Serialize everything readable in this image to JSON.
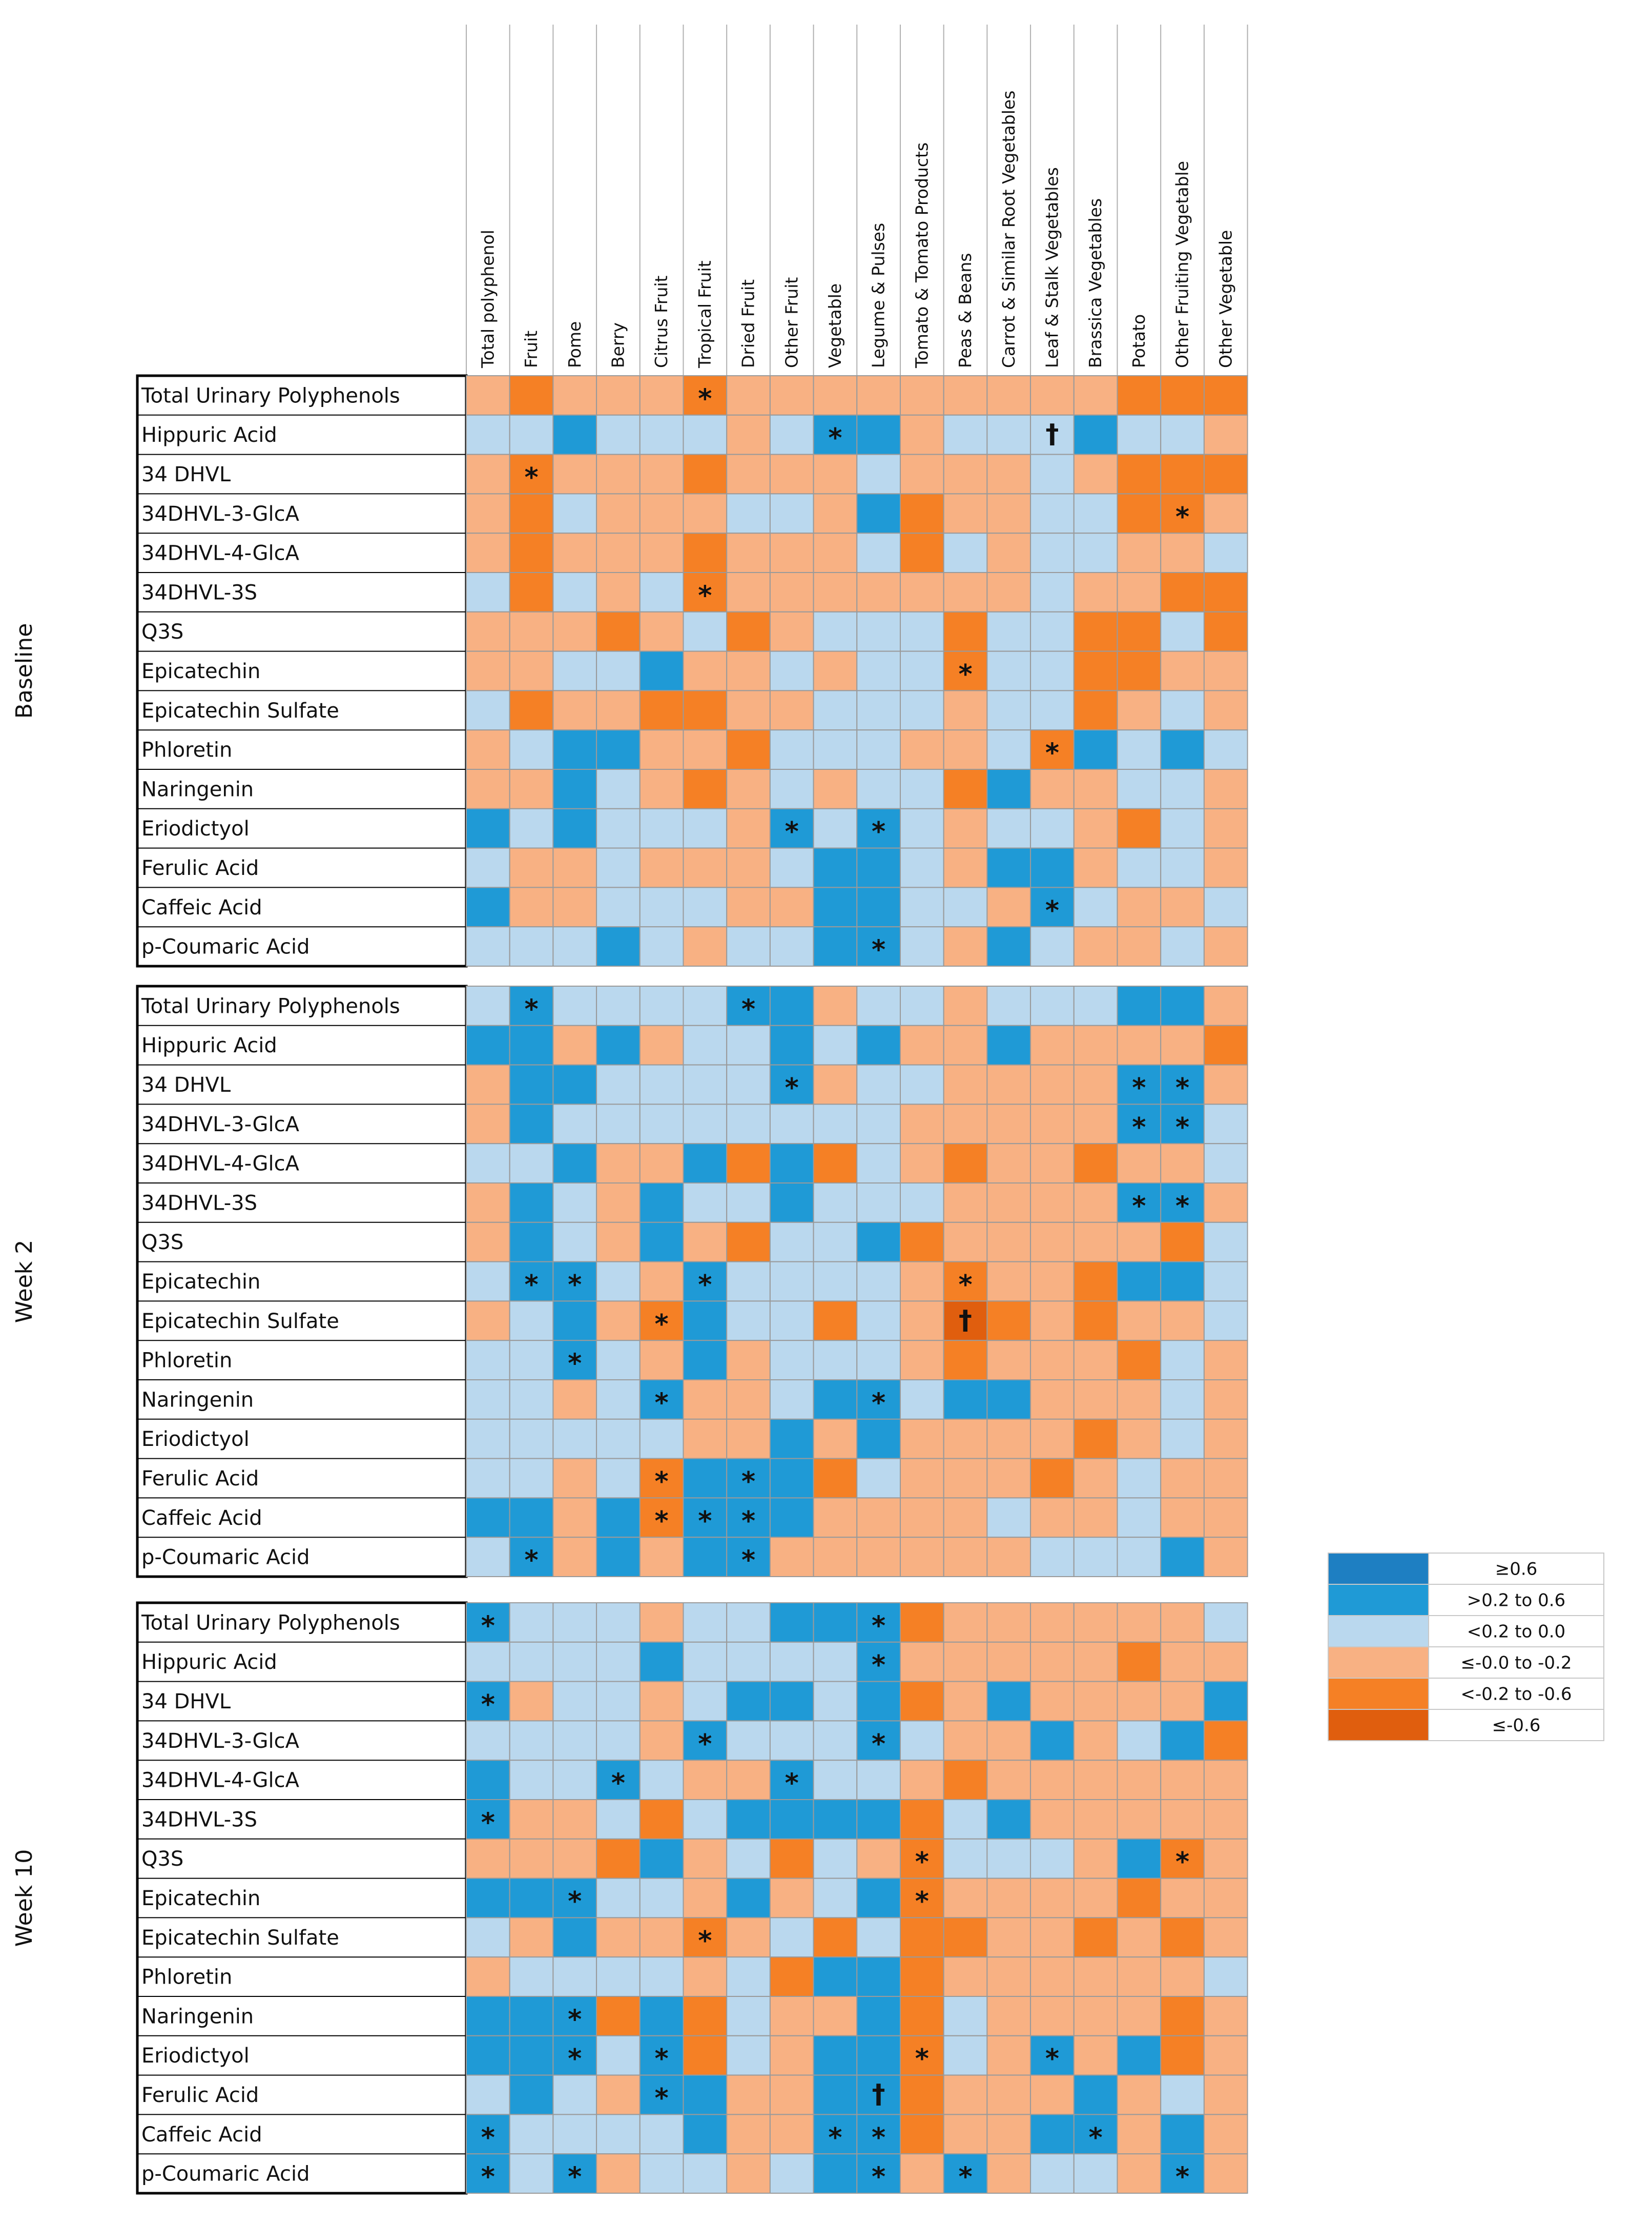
{
  "colors": {
    "strong_pos": "#1e7fc2",
    "pos": "#1f9ad6",
    "weak_pos": "#bad8ee",
    "weak_neg": "#f8b183",
    "neg": "#f58025",
    "strong_neg": "#e05e0e",
    "grid": "#9a9a9a",
    "border": "#000000"
  },
  "chart_data": {
    "type": "heatmap",
    "title": "",
    "columns": [
      "Total polyphenol",
      "Fruit",
      "Pome",
      "Berry",
      "Citrus Fruit",
      "Tropical Fruit",
      "Dried Fruit",
      "Other Fruit",
      "Vegetable",
      "Legume & Pulses",
      "Tomato & Tomato Products",
      "Peas & Beans",
      "Carrot & Similar Root Vegetables",
      "Leaf & Stalk Vegetables",
      "Brassica Vegetables",
      "Potato",
      "Other Fruiting Vegetable",
      "Other Vegetable"
    ],
    "rows": [
      "Total Urinary Polyphenols",
      "Hippuric Acid",
      "34 DHVL",
      "34DHVL-3-GlcA",
      "34DHVL-4-GlcA",
      "34DHVL-3S",
      "Q3S",
      "Epicatechin",
      "Epicatechin Sulfate",
      "Phloretin",
      "Naringenin",
      "Eriodictyol",
      "Ferulic Acid",
      "Caffeic Acid",
      "p-Coumaric Acid"
    ],
    "category_scale": [
      {
        "code": 5,
        "label": "≥0.6"
      },
      {
        "code": 4,
        "label": ">0.2 to 0.6"
      },
      {
        "code": 3,
        "label": "<0.2 to 0.0"
      },
      {
        "code": 2,
        "label": "≤-0.0 to -0.2"
      },
      {
        "code": 1,
        "label": "<-0.2 to -0.6"
      },
      {
        "code": 0,
        "label": "≤-0.6"
      }
    ],
    "significance_marks": {
      "*": "significant",
      "†": "highly significant"
    },
    "panels": [
      {
        "name": "Baseline",
        "values": [
          [
            2,
            1,
            2,
            2,
            2,
            1,
            2,
            2,
            2,
            2,
            2,
            2,
            2,
            2,
            2,
            1,
            1,
            1
          ],
          [
            3,
            3,
            4,
            3,
            3,
            3,
            2,
            3,
            4,
            4,
            2,
            3,
            3,
            3,
            4,
            3,
            3,
            2
          ],
          [
            2,
            1,
            2,
            2,
            2,
            1,
            2,
            2,
            2,
            3,
            2,
            2,
            2,
            3,
            2,
            1,
            1,
            1
          ],
          [
            2,
            1,
            3,
            2,
            2,
            2,
            3,
            3,
            2,
            4,
            1,
            2,
            2,
            3,
            3,
            1,
            1,
            2
          ],
          [
            2,
            1,
            2,
            2,
            2,
            1,
            2,
            2,
            2,
            3,
            1,
            3,
            2,
            3,
            3,
            2,
            2,
            3
          ],
          [
            3,
            1,
            3,
            2,
            3,
            1,
            2,
            2,
            2,
            2,
            2,
            2,
            2,
            3,
            2,
            2,
            1,
            1
          ],
          [
            2,
            2,
            2,
            1,
            2,
            3,
            1,
            2,
            3,
            3,
            3,
            1,
            3,
            3,
            1,
            1,
            3,
            1
          ],
          [
            2,
            2,
            3,
            3,
            4,
            2,
            2,
            3,
            2,
            3,
            3,
            1,
            3,
            3,
            1,
            1,
            2,
            2
          ],
          [
            3,
            1,
            2,
            2,
            1,
            1,
            2,
            2,
            3,
            3,
            3,
            2,
            3,
            3,
            1,
            2,
            3,
            2
          ],
          [
            2,
            3,
            4,
            4,
            2,
            2,
            1,
            3,
            3,
            3,
            2,
            2,
            3,
            1,
            4,
            3,
            4,
            3
          ],
          [
            2,
            2,
            4,
            3,
            2,
            1,
            2,
            3,
            2,
            3,
            3,
            1,
            4,
            2,
            2,
            3,
            3,
            2
          ],
          [
            4,
            3,
            4,
            3,
            3,
            3,
            2,
            4,
            3,
            4,
            3,
            2,
            3,
            3,
            2,
            1,
            3,
            2
          ],
          [
            3,
            2,
            2,
            3,
            2,
            2,
            2,
            3,
            4,
            4,
            3,
            2,
            4,
            4,
            2,
            3,
            3,
            2
          ],
          [
            4,
            2,
            2,
            3,
            3,
            3,
            2,
            2,
            4,
            4,
            3,
            3,
            2,
            4,
            3,
            2,
            2,
            3
          ],
          [
            3,
            3,
            3,
            4,
            3,
            2,
            3,
            3,
            4,
            4,
            3,
            2,
            4,
            3,
            2,
            2,
            3,
            2
          ]
        ],
        "marks": [
          [
            0,
            5,
            "*"
          ],
          [
            1,
            8,
            "*"
          ],
          [
            1,
            13,
            "†"
          ],
          [
            2,
            1,
            "*"
          ],
          [
            3,
            16,
            "*"
          ],
          [
            5,
            5,
            "*"
          ],
          [
            7,
            11,
            "*"
          ],
          [
            9,
            13,
            "*"
          ],
          [
            11,
            7,
            "*"
          ],
          [
            11,
            9,
            "*"
          ],
          [
            13,
            13,
            "*"
          ],
          [
            14,
            9,
            "*"
          ]
        ]
      },
      {
        "name": "Week 2",
        "values": [
          [
            3,
            4,
            3,
            3,
            3,
            3,
            4,
            4,
            2,
            3,
            3,
            2,
            3,
            3,
            3,
            4,
            4,
            2
          ],
          [
            4,
            4,
            2,
            4,
            2,
            3,
            3,
            4,
            3,
            4,
            2,
            2,
            4,
            2,
            2,
            2,
            2,
            1
          ],
          [
            2,
            4,
            4,
            3,
            3,
            3,
            3,
            4,
            2,
            3,
            3,
            2,
            2,
            2,
            2,
            4,
            4,
            2
          ],
          [
            2,
            4,
            3,
            3,
            3,
            3,
            3,
            3,
            3,
            3,
            2,
            2,
            2,
            2,
            2,
            4,
            4,
            3
          ],
          [
            3,
            3,
            4,
            2,
            2,
            4,
            1,
            4,
            1,
            3,
            2,
            1,
            2,
            2,
            1,
            2,
            2,
            3
          ],
          [
            2,
            4,
            3,
            2,
            4,
            3,
            3,
            4,
            3,
            3,
            3,
            2,
            2,
            2,
            2,
            4,
            4,
            2
          ],
          [
            2,
            4,
            3,
            2,
            4,
            2,
            1,
            3,
            3,
            4,
            1,
            2,
            2,
            2,
            2,
            2,
            1,
            3
          ],
          [
            3,
            4,
            4,
            3,
            2,
            4,
            3,
            3,
            3,
            3,
            2,
            1,
            2,
            2,
            1,
            4,
            4,
            3
          ],
          [
            2,
            3,
            4,
            2,
            1,
            4,
            3,
            3,
            1,
            3,
            2,
            0,
            1,
            2,
            1,
            2,
            2,
            3
          ],
          [
            3,
            3,
            4,
            3,
            2,
            4,
            2,
            3,
            3,
            3,
            2,
            1,
            2,
            2,
            2,
            1,
            3,
            2
          ],
          [
            3,
            3,
            2,
            3,
            4,
            2,
            2,
            3,
            4,
            4,
            3,
            4,
            4,
            2,
            2,
            2,
            3,
            2
          ],
          [
            3,
            3,
            3,
            3,
            3,
            2,
            2,
            4,
            2,
            4,
            2,
            2,
            2,
            2,
            1,
            2,
            3,
            2
          ],
          [
            3,
            3,
            2,
            3,
            1,
            4,
            4,
            4,
            1,
            3,
            2,
            2,
            2,
            1,
            2,
            3,
            2,
            2
          ],
          [
            4,
            4,
            2,
            4,
            1,
            4,
            4,
            4,
            2,
            2,
            2,
            2,
            3,
            2,
            2,
            3,
            2,
            2
          ],
          [
            3,
            4,
            2,
            4,
            2,
            4,
            4,
            2,
            2,
            2,
            2,
            2,
            2,
            3,
            3,
            3,
            4,
            2
          ]
        ],
        "marks": [
          [
            0,
            1,
            "*"
          ],
          [
            0,
            6,
            "*"
          ],
          [
            2,
            7,
            "*"
          ],
          [
            2,
            15,
            "*"
          ],
          [
            2,
            16,
            "*"
          ],
          [
            3,
            15,
            "*"
          ],
          [
            3,
            16,
            "*"
          ],
          [
            5,
            15,
            "*"
          ],
          [
            5,
            16,
            "*"
          ],
          [
            7,
            1,
            "*"
          ],
          [
            7,
            2,
            "*"
          ],
          [
            7,
            5,
            "*"
          ],
          [
            7,
            11,
            "*"
          ],
          [
            8,
            4,
            "*"
          ],
          [
            8,
            11,
            "†"
          ],
          [
            9,
            2,
            "*"
          ],
          [
            10,
            4,
            "*"
          ],
          [
            10,
            9,
            "*"
          ],
          [
            12,
            4,
            "*"
          ],
          [
            12,
            6,
            "*"
          ],
          [
            13,
            4,
            "*"
          ],
          [
            13,
            5,
            "*"
          ],
          [
            13,
            6,
            "*"
          ],
          [
            14,
            1,
            "*"
          ],
          [
            14,
            6,
            "*"
          ]
        ]
      },
      {
        "name": "Week 10",
        "values": [
          [
            4,
            3,
            3,
            3,
            2,
            3,
            3,
            4,
            4,
            4,
            1,
            2,
            2,
            2,
            2,
            2,
            2,
            3
          ],
          [
            3,
            3,
            3,
            3,
            4,
            3,
            3,
            3,
            3,
            4,
            2,
            2,
            2,
            2,
            2,
            1,
            2,
            2
          ],
          [
            4,
            2,
            3,
            3,
            2,
            3,
            4,
            4,
            3,
            4,
            1,
            2,
            4,
            2,
            2,
            2,
            2,
            4
          ],
          [
            3,
            3,
            3,
            3,
            2,
            4,
            3,
            3,
            3,
            4,
            3,
            2,
            2,
            4,
            2,
            3,
            4,
            1
          ],
          [
            4,
            3,
            3,
            4,
            3,
            2,
            2,
            4,
            3,
            3,
            2,
            1,
            2,
            2,
            2,
            2,
            2,
            2
          ],
          [
            4,
            2,
            2,
            3,
            1,
            3,
            4,
            4,
            4,
            4,
            1,
            3,
            4,
            2,
            2,
            2,
            2,
            2
          ],
          [
            2,
            2,
            2,
            1,
            4,
            2,
            3,
            1,
            3,
            2,
            1,
            3,
            3,
            3,
            2,
            4,
            1,
            2
          ],
          [
            4,
            4,
            4,
            3,
            3,
            2,
            4,
            2,
            3,
            4,
            1,
            2,
            2,
            2,
            2,
            1,
            2,
            2
          ],
          [
            3,
            2,
            4,
            2,
            2,
            1,
            2,
            3,
            1,
            3,
            1,
            1,
            2,
            2,
            1,
            2,
            1,
            2
          ],
          [
            2,
            3,
            3,
            3,
            3,
            2,
            3,
            1,
            4,
            4,
            1,
            2,
            2,
            2,
            2,
            2,
            2,
            3
          ],
          [
            4,
            4,
            4,
            1,
            4,
            1,
            3,
            2,
            2,
            4,
            1,
            3,
            2,
            2,
            2,
            2,
            1,
            2
          ],
          [
            4,
            4,
            4,
            3,
            4,
            1,
            3,
            2,
            4,
            4,
            1,
            3,
            2,
            4,
            2,
            4,
            1,
            2
          ],
          [
            3,
            4,
            3,
            2,
            4,
            4,
            2,
            2,
            4,
            4,
            1,
            2,
            2,
            2,
            4,
            2,
            3,
            2
          ],
          [
            4,
            3,
            3,
            3,
            3,
            4,
            2,
            2,
            4,
            4,
            1,
            2,
            2,
            4,
            4,
            2,
            4,
            2
          ],
          [
            4,
            3,
            4,
            2,
            3,
            3,
            2,
            3,
            4,
            4,
            2,
            4,
            2,
            3,
            3,
            2,
            4,
            2
          ]
        ],
        "marks": [
          [
            0,
            0,
            "*"
          ],
          [
            0,
            9,
            "*"
          ],
          [
            1,
            9,
            "*"
          ],
          [
            2,
            0,
            "*"
          ],
          [
            3,
            5,
            "*"
          ],
          [
            3,
            9,
            "*"
          ],
          [
            4,
            3,
            "*"
          ],
          [
            4,
            7,
            "*"
          ],
          [
            5,
            0,
            "*"
          ],
          [
            6,
            10,
            "*"
          ],
          [
            6,
            16,
            "*"
          ],
          [
            7,
            2,
            "*"
          ],
          [
            7,
            10,
            "*"
          ],
          [
            8,
            5,
            "*"
          ],
          [
            10,
            2,
            "*"
          ],
          [
            11,
            2,
            "*"
          ],
          [
            11,
            4,
            "*"
          ],
          [
            11,
            10,
            "*"
          ],
          [
            11,
            13,
            "*"
          ],
          [
            12,
            4,
            "*"
          ],
          [
            12,
            9,
            "†"
          ],
          [
            13,
            0,
            "*"
          ],
          [
            13,
            8,
            "*"
          ],
          [
            13,
            9,
            "*"
          ],
          [
            13,
            14,
            "*"
          ],
          [
            14,
            0,
            "*"
          ],
          [
            14,
            2,
            "*"
          ],
          [
            14,
            9,
            "*"
          ],
          [
            14,
            11,
            "*"
          ],
          [
            14,
            16,
            "*"
          ]
        ]
      }
    ]
  }
}
